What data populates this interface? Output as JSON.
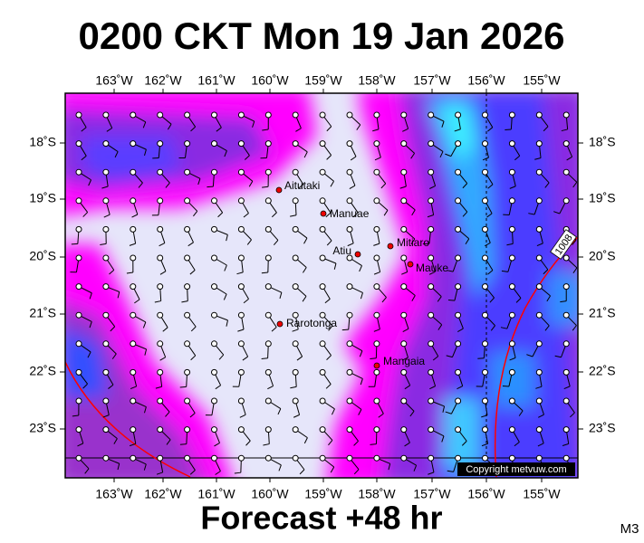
{
  "header": {
    "title": "0200 CKT Mon 19 Jan 2026"
  },
  "map": {
    "lon_labels": [
      "163˚W",
      "162˚W",
      "161˚W",
      "160˚W",
      "159˚W",
      "158˚W",
      "157˚W",
      "156˚W",
      "155˚W"
    ],
    "lat_labels": [
      "18˚S",
      "19˚S",
      "20˚S",
      "21˚S",
      "22˚S",
      "23˚S"
    ],
    "places": [
      "Aitutaki",
      "Manuae",
      "Atiu",
      "Mitiaro",
      "Mauke",
      "Rarotonga",
      "Mangaia"
    ],
    "isobar_label": "1008",
    "copyright": "Copyright metvuw.com"
  },
  "footer": {
    "forecast": "Forecast +48 hr",
    "model": "M3"
  }
}
